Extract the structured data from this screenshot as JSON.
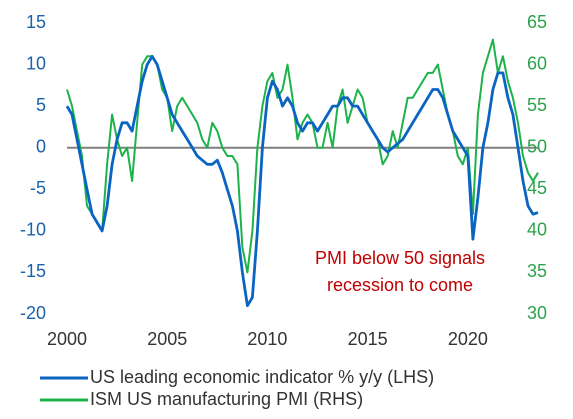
{
  "chart_data": {
    "type": "line",
    "x": [
      2000,
      2000.25,
      2000.5,
      2000.75,
      2001,
      2001.25,
      2001.5,
      2001.75,
      2002,
      2002.25,
      2002.5,
      2002.75,
      2003,
      2003.25,
      2003.5,
      2003.75,
      2004,
      2004.25,
      2004.5,
      2004.75,
      2005,
      2005.25,
      2005.5,
      2005.75,
      2006,
      2006.25,
      2006.5,
      2006.75,
      2007,
      2007.25,
      2007.5,
      2007.75,
      2008,
      2008.25,
      2008.5,
      2008.75,
      2009,
      2009.25,
      2009.5,
      2009.75,
      2010,
      2010.25,
      2010.5,
      2010.75,
      2011,
      2011.25,
      2011.5,
      2011.75,
      2012,
      2012.25,
      2012.5,
      2012.75,
      2013,
      2013.25,
      2013.5,
      2013.75,
      2014,
      2014.25,
      2014.5,
      2014.75,
      2015,
      2015.25,
      2015.5,
      2015.75,
      2016,
      2016.25,
      2016.5,
      2016.75,
      2017,
      2017.25,
      2017.5,
      2017.75,
      2018,
      2018.25,
      2018.5,
      2018.75,
      2019,
      2019.25,
      2019.5,
      2019.75,
      2020,
      2020.25,
      2020.5,
      2020.75,
      2021,
      2021.25,
      2021.5,
      2021.75,
      2022,
      2022.25,
      2022.5,
      2022.75,
      2023,
      2023.25,
      2023.5
    ],
    "series": [
      {
        "name": "US leading economic indicator % y/y (LHS)",
        "color": "#0a64c2",
        "axis": "y",
        "values": [
          5,
          4,
          1,
          -2,
          -5,
          -8,
          -9,
          -10,
          -7,
          -2,
          1,
          3,
          3,
          2,
          5,
          8,
          10,
          11,
          10,
          8,
          6,
          4,
          3,
          2,
          1,
          0,
          -1,
          -1.5,
          -2,
          -2,
          -1.5,
          -3,
          -5,
          -7,
          -10,
          -15,
          -19,
          -18,
          -10,
          0,
          6,
          8,
          7,
          5,
          6,
          5,
          3,
          2,
          3,
          3,
          2,
          3,
          4,
          5,
          5,
          6,
          6,
          5,
          5,
          4,
          3,
          2,
          1,
          0,
          -0.5,
          0,
          0.5,
          1,
          2,
          3,
          4,
          5,
          6,
          7,
          7,
          6,
          4,
          2,
          1,
          0,
          -1,
          -11,
          -6,
          0,
          3,
          7,
          9,
          9,
          6,
          4,
          0,
          -4,
          -7,
          -8,
          -7.8
        ]
      },
      {
        "name": "ISM US manufacturing PMI (RHS)",
        "color": "#1db34a",
        "axis": "y2",
        "values": [
          57,
          55,
          52,
          49,
          43,
          42,
          41,
          40,
          48,
          54,
          51,
          49,
          50,
          46,
          53,
          60,
          61,
          61,
          60,
          57,
          56,
          52,
          55,
          56,
          55,
          54,
          53,
          51,
          50,
          53,
          52,
          50,
          49,
          49,
          48,
          38,
          35,
          40,
          50,
          55,
          58,
          59,
          56,
          57,
          60,
          56,
          51,
          53,
          54,
          53,
          50,
          50,
          53,
          50,
          55,
          57,
          53,
          55,
          57,
          56,
          53,
          52,
          51,
          48,
          49,
          52,
          50,
          53,
          56,
          56,
          57,
          58,
          59,
          59,
          60,
          57,
          54,
          52,
          49,
          48,
          50,
          42,
          54,
          59,
          61,
          63,
          59,
          61,
          58,
          56,
          53,
          49,
          47,
          46,
          47
        ]
      }
    ],
    "xlim": [
      2000,
      2023.5
    ],
    "xticks": [
      2000,
      2005,
      2010,
      2015,
      2020
    ],
    "ylim": [
      -20,
      15
    ],
    "yticks": [
      -20,
      -15,
      -10,
      -5,
      0,
      5,
      10,
      15
    ],
    "y2lim": [
      30,
      65
    ],
    "y2ticks": [
      30,
      35,
      40,
      45,
      50,
      55,
      60,
      65
    ],
    "ycolor": "#1a62ad",
    "y2color": "#2ca24a",
    "annotation": [
      "PMI below 50 signals",
      "recession to come"
    ],
    "annotation_color": "#c00000"
  }
}
